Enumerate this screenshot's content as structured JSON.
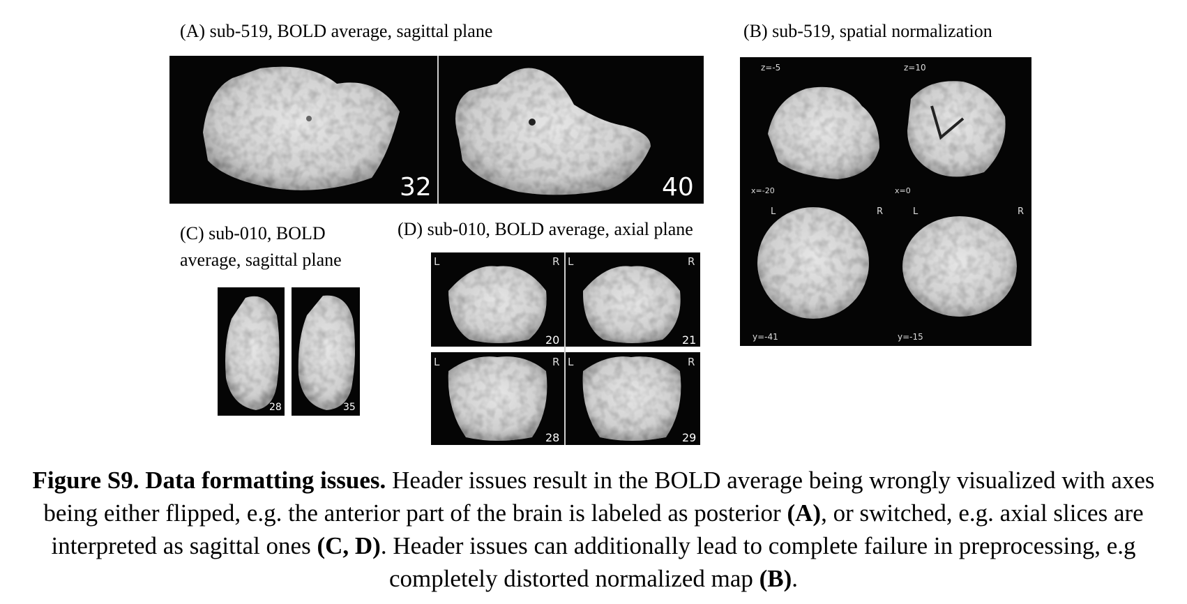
{
  "panels": {
    "a": {
      "title": "(A)  sub-519, BOLD average, sagittal plane",
      "slices": [
        "32",
        "40"
      ]
    },
    "b": {
      "title": "(B) sub-519, spatial normalization",
      "top_labels": [
        "z=-5",
        "z=10"
      ],
      "mid_labels": [
        "x=-20",
        "x=0"
      ],
      "bottom_labels": [
        "y=-41",
        "y=-15"
      ],
      "orient_left": "L",
      "orient_right": "R"
    },
    "c": {
      "title_line1": "(C)  sub-010, BOLD",
      "title_line2": "average, sagittal plane",
      "slices": [
        "28",
        "35"
      ]
    },
    "d": {
      "title": "(D) sub-010, BOLD average, axial plane",
      "slices": [
        "20",
        "21",
        "28",
        "29"
      ],
      "orient_left": "L",
      "orient_right": "R"
    }
  },
  "caption": {
    "bold_lead": "Figure S9. Data formatting issues.",
    "text1": " Header issues result in the BOLD average being wrongly visualized with axes being either flipped, e.g. the anterior part of the brain is labeled as posterior ",
    "ref_a": "(A)",
    "text2": ", or switched, e.g. axial slices are interpreted as sagittal ones ",
    "ref_cd": "(C, D)",
    "text3": ". Header issues can additionally lead to complete failure in preprocessing, e.g completely distorted normalized map ",
    "ref_b": "(B)",
    "text4": "."
  }
}
